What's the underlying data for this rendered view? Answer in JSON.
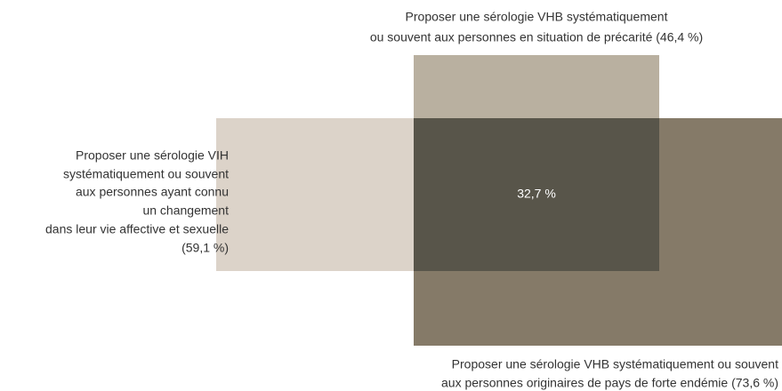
{
  "sets": [
    {
      "label": [
        "Proposer une sérologie VHB systématiquement",
        "ou souvent aux personnes en situation de précarité (46,4 %)"
      ]
    },
    {
      "label": [
        "Proposer une sérologie VIH",
        "systématiquement ou souvent",
        "aux personnes ayant connu",
        "un changement",
        "dans leur vie affective et sexuelle",
        "(59,1 %)"
      ]
    },
    {
      "label": [
        "Proposer une sérologie VHB systématiquement ou souvent",
        "aux personnes originaires de pays de forte endémie (73,6 %)"
      ]
    }
  ],
  "intersection": {
    "label": "32,7 %"
  }
}
